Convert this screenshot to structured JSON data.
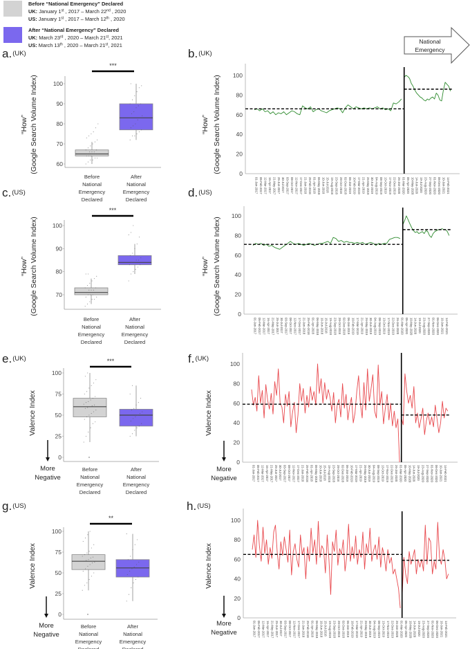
{
  "legend": {
    "before": {
      "title": "Before “National Emergency” Declared",
      "uk_label": "UK:",
      "uk_text": [
        [
          "January 1",
          ""
        ],
        [
          "st",
          "sup"
        ],
        [
          " , 2017 – March 22",
          ""
        ],
        [
          "nd",
          "sup"
        ],
        [
          " , 2020",
          ""
        ]
      ],
      "us_label": "US:",
      "us_text": [
        [
          "January 1",
          ""
        ],
        [
          "st",
          "sup"
        ],
        [
          " , 2017 – March 12",
          ""
        ],
        [
          "th",
          "sup"
        ],
        [
          " , 2020",
          ""
        ]
      ],
      "color": "#d3d3d3"
    },
    "after": {
      "title": "After “National Emergency” Declared",
      "uk_label": "UK:",
      "uk_text": [
        [
          "March 23",
          ""
        ],
        [
          "rd",
          "sup"
        ],
        [
          " , 2020 – March 21",
          ""
        ],
        [
          "st",
          "sup"
        ],
        [
          ", 2021",
          ""
        ]
      ],
      "us_label": "US:",
      "us_text": [
        [
          "March 13",
          ""
        ],
        [
          "th",
          "sup"
        ],
        [
          " , 2020 – March 21",
          ""
        ],
        [
          "st",
          "sup"
        ],
        [
          ", 2021",
          ""
        ]
      ],
      "color": "#7b68ee"
    }
  },
  "emergency_arrow": {
    "line1": "National",
    "line2": "Emergency"
  },
  "more_negative": {
    "line1": "More",
    "line2": "Negative"
  },
  "categories": [
    [
      "Before",
      "National",
      "Emergency",
      "Declared"
    ],
    [
      "After",
      "National",
      "Emergency",
      "Declared"
    ]
  ],
  "date_ticks": [
    "01-Jan-2017",
    "05-Feb-2017",
    "12-Mar-2017",
    "16-Apr-2017",
    "21-May-2017",
    "25-Jun-2017",
    "30-Jul-2017",
    "03-Sep-2017",
    "08-Oct-2017",
    "12-Nov-2017",
    "17-Dec-2017",
    "21-Jan-2018",
    "25-Feb-2018",
    "01-Apr-2018",
    "06-May-2018",
    "10-Jun-2018",
    "15-Jul-2018",
    "19-Aug-2018",
    "23-Sep-2018",
    "28-Oct-2018",
    "02-Dec-2018",
    "06-Jan-2019",
    "10-Feb-2019",
    "17-Mar-2019",
    "21-Apr-2019",
    "26-May-2019",
    "30-Jun-2019",
    "04-Aug-2019",
    "08-Sep-2019",
    "13-Oct-2019",
    "17-Nov-2019",
    "22-Dec-2019",
    "26-Jan-2020",
    "01-Mar-2020",
    "05-Apr-2020",
    "10-May-2020",
    "14-Jun-2020",
    "19-Jul-2020",
    "23-Aug-2020",
    "27-Sep-2020",
    "01-Nov-2020",
    "06-Dec-2020",
    "10-Jan-2021",
    "14-Feb-2021"
  ],
  "chart_data": [
    {
      "id": "a",
      "type": "box",
      "label": "a.",
      "region": "(UK)",
      "ylabel": [
        "“How”",
        "(Google Search Volume Index)"
      ],
      "yticks": [
        60,
        70,
        80,
        90,
        100
      ],
      "ylim": [
        59,
        101
      ],
      "significance": "***",
      "groups": [
        {
          "name": "Before National Emergency Declared",
          "whisker_low": 60,
          "q1": 64,
          "median": 65,
          "q3": 67,
          "whisker_high": 71,
          "points": [
            60,
            61,
            62,
            62,
            63,
            63,
            64,
            64,
            64,
            65,
            65,
            65,
            65,
            66,
            66,
            66,
            67,
            67,
            68,
            69,
            70,
            71,
            72,
            73,
            74,
            75,
            76,
            78,
            80
          ]
        },
        {
          "name": "After National Emergency Declared",
          "whisker_low": 72,
          "q1": 77,
          "median": 83,
          "q3": 90,
          "whisker_high": 100,
          "points": [
            72,
            74,
            74,
            75,
            76,
            77,
            78,
            79,
            80,
            82,
            83,
            84,
            85,
            86,
            88,
            89,
            90,
            90,
            92,
            94,
            96,
            98,
            99,
            100
          ]
        }
      ]
    },
    {
      "id": "c",
      "type": "box",
      "label": "c.",
      "region": "(US)",
      "ylabel": [
        "“How”",
        "(Google Search Volume Index)"
      ],
      "yticks": [
        70,
        80,
        90,
        100
      ],
      "ylim": [
        63,
        102
      ],
      "significance": "***",
      "groups": [
        {
          "name": "Before National Emergency Declared",
          "whisker_low": 66,
          "q1": 70,
          "median": 71,
          "q3": 73,
          "whisker_high": 77,
          "points": [
            65,
            66,
            67,
            68,
            68,
            69,
            69,
            70,
            70,
            70,
            71,
            71,
            71,
            72,
            72,
            72,
            73,
            73,
            74,
            75,
            76,
            77,
            78,
            79,
            79
          ]
        },
        {
          "name": "After National Emergency Declared",
          "whisker_low": 79,
          "q1": 83,
          "median": 84,
          "q3": 87,
          "whisker_high": 92,
          "points": [
            76,
            79,
            80,
            81,
            82,
            83,
            83,
            84,
            84,
            85,
            85,
            86,
            87,
            88,
            90,
            92,
            95,
            96,
            97,
            100
          ]
        }
      ]
    },
    {
      "id": "e",
      "type": "box",
      "label": "e.",
      "region": "(UK)",
      "ylabel": [
        "Valence Index"
      ],
      "yticks": [
        0,
        25,
        50,
        75,
        100
      ],
      "ylim": [
        -3,
        103
      ],
      "significance": "***",
      "groups": [
        {
          "name": "Before National Emergency Declared",
          "whisker_low": 18,
          "q1": 48,
          "median": 60,
          "q3": 70,
          "whisker_high": 100,
          "outliers": [
            0
          ],
          "points": [
            18,
            25,
            30,
            35,
            40,
            42,
            45,
            48,
            50,
            52,
            54,
            56,
            58,
            59,
            60,
            61,
            62,
            63,
            65,
            66,
            68,
            70,
            72,
            75,
            78,
            82,
            85,
            88,
            92,
            96,
            100
          ]
        },
        {
          "name": "After National Emergency Declared",
          "whisker_low": 25,
          "q1": 37,
          "median": 50,
          "q3": 57,
          "whisker_high": 85,
          "points": [
            25,
            28,
            32,
            35,
            37,
            40,
            43,
            46,
            48,
            50,
            52,
            54,
            56,
            58,
            62,
            65,
            70,
            75,
            85
          ]
        }
      ]
    },
    {
      "id": "g",
      "type": "box",
      "label": "g.",
      "region": "(US)",
      "ylabel": [
        "Valence Index"
      ],
      "yticks": [
        0,
        25,
        50,
        75,
        100
      ],
      "ylim": [
        -3,
        103
      ],
      "significance": "**",
      "groups": [
        {
          "name": "Before National Emergency Declared",
          "whisker_low": 29,
          "q1": 54,
          "median": 64,
          "q3": 72,
          "whisker_high": 100,
          "outliers": [
            0
          ],
          "points": [
            29,
            35,
            38,
            42,
            46,
            50,
            52,
            55,
            58,
            60,
            62,
            63,
            64,
            65,
            66,
            68,
            69,
            70,
            72,
            74,
            76,
            80,
            84,
            88,
            92,
            96,
            100
          ]
        },
        {
          "name": "After National Emergency Declared",
          "whisker_low": 16,
          "q1": 45,
          "median": 56,
          "q3": 66,
          "whisker_high": 97,
          "points": [
            16,
            24,
            32,
            38,
            42,
            45,
            48,
            52,
            55,
            57,
            60,
            63,
            66,
            70,
            78,
            84,
            90,
            97
          ]
        }
      ]
    },
    {
      "id": "b",
      "type": "line",
      "label": "b.",
      "region": "(UK)",
      "ylabel": [
        "“How”",
        "(Google Search Volume Index)"
      ],
      "yticks": [
        0,
        20,
        40,
        60,
        80,
        100
      ],
      "ylim": [
        0,
        100
      ],
      "emergency_week": 168,
      "pre_mean": 66,
      "post_mean": 86,
      "color": "#2e8b2e",
      "pre": {
        "start_week": 0,
        "step_weeks": 3,
        "values": [
          65,
          66,
          64,
          66,
          63,
          64,
          61,
          63,
          60,
          62,
          61,
          63,
          60,
          62,
          64,
          63,
          61,
          60,
          69,
          67,
          66,
          68,
          63,
          65,
          66,
          64,
          63,
          62,
          64,
          65,
          66,
          67,
          66,
          62,
          67,
          70,
          68,
          66,
          68,
          67,
          66,
          67,
          66,
          67,
          66,
          67,
          68,
          66,
          67,
          65,
          66,
          64,
          72,
          71,
          73,
          76
        ]
      },
      "post": {
        "start_week": 168,
        "step_weeks": 2,
        "values": [
          98,
          100,
          99,
          97,
          92,
          89,
          85,
          82,
          80,
          78,
          77,
          75,
          74,
          76,
          75,
          77,
          78,
          76,
          82,
          80,
          75,
          74,
          85,
          93,
          91,
          89,
          84
        ]
      }
    },
    {
      "id": "d",
      "type": "line",
      "label": "d.",
      "region": "(US)",
      "ylabel": [
        "“How”",
        "(Google Search Volume Index)"
      ],
      "yticks": [
        0,
        20,
        40,
        60,
        80,
        100
      ],
      "ylim": [
        0,
        100
      ],
      "emergency_week": 168,
      "pre_mean": 71,
      "post_mean": 86,
      "color": "#2e8b2e",
      "pre": {
        "start_week": 0,
        "step_weeks": 3,
        "values": [
          70,
          72,
          71,
          72,
          70,
          71,
          69,
          70,
          68,
          67,
          66,
          68,
          70,
          72,
          74,
          72,
          71,
          72,
          71,
          70,
          71,
          72,
          71,
          70,
          71,
          72,
          72,
          73,
          74,
          72,
          78,
          77,
          74,
          75,
          73,
          74,
          73,
          73,
          72,
          73,
          72,
          73,
          71,
          72,
          73,
          72,
          70,
          72,
          71,
          72,
          72,
          76,
          77,
          78,
          78,
          77
        ]
      },
      "post": {
        "start_week": 168,
        "step_weeks": 2,
        "values": [
          91,
          95,
          100,
          96,
          92,
          88,
          85,
          83,
          84,
          82,
          83,
          84,
          82,
          85,
          84,
          80,
          78,
          82,
          84,
          85,
          86,
          86,
          87,
          86,
          86,
          84,
          80
        ]
      }
    },
    {
      "id": "f",
      "type": "line",
      "label": "f.",
      "region": "(UK)",
      "ylabel": [
        "Valence Index"
      ],
      "yticks": [
        0,
        20,
        40,
        60,
        80,
        100
      ],
      "ylim": [
        0,
        100
      ],
      "emergency_week": 168,
      "pre_mean": 59,
      "post_mean": 48,
      "color": "#e8474c",
      "pre": {
        "start_week": 0,
        "step_weeks": 2,
        "values": [
          74,
          58,
          66,
          52,
          88,
          60,
          73,
          45,
          79,
          63,
          54,
          70,
          49,
          82,
          68,
          95,
          60,
          56,
          40,
          69,
          57,
          72,
          36,
          51,
          61,
          30,
          48,
          80,
          62,
          75,
          50,
          68,
          56,
          77,
          63,
          72,
          58,
          100,
          70,
          85,
          60,
          81,
          64,
          74,
          66,
          52,
          71,
          40,
          58,
          64,
          46,
          80,
          55,
          69,
          43,
          57,
          66,
          40,
          50,
          72,
          88,
          60,
          45,
          81,
          53,
          95,
          62,
          75,
          89,
          52,
          45,
          99,
          58,
          72,
          39,
          55,
          69,
          43,
          60,
          37,
          52,
          35,
          44,
          0
        ]
      },
      "post": {
        "start_week": 168,
        "step_weeks": 2,
        "values": [
          45,
          38,
          90,
          72,
          60,
          68,
          55,
          77,
          40,
          50,
          35,
          44,
          55,
          28,
          42,
          50,
          38,
          46,
          36,
          58,
          44,
          30,
          40,
          62,
          45,
          55,
          52
        ]
      }
    },
    {
      "id": "h",
      "type": "line",
      "label": "h.",
      "region": "(US)",
      "ylabel": [
        "Valence Index"
      ],
      "yticks": [
        0,
        20,
        40,
        60,
        80,
        100
      ],
      "ylim": [
        0,
        100
      ],
      "emergency_week": 168,
      "pre_mean": 65,
      "post_mean": 59,
      "color": "#e8474c",
      "pre": {
        "start_week": 0,
        "step_weeks": 2,
        "values": [
          70,
          85,
          62,
          100,
          74,
          58,
          93,
          66,
          80,
          55,
          72,
          61,
          88,
          95,
          67,
          50,
          78,
          64,
          83,
          70,
          57,
          90,
          44,
          68,
          76,
          60,
          52,
          85,
          65,
          72,
          40,
          73,
          58,
          92,
          66,
          80,
          55,
          99,
          62,
          74,
          70,
          46,
          85,
          60,
          24,
          78,
          68,
          90,
          54,
          71,
          65,
          80,
          48,
          63,
          96,
          58,
          73,
          61,
          84,
          55,
          70,
          62,
          88,
          50,
          76,
          66,
          92,
          58,
          69,
          75,
          60,
          83,
          52,
          72,
          64,
          48,
          70,
          56,
          62,
          45,
          50,
          40,
          30,
          10
        ]
      },
      "post": {
        "start_week": 168,
        "step_weeks": 2,
        "values": [
          20,
          62,
          45,
          35,
          68,
          55,
          62,
          70,
          45,
          60,
          52,
          60,
          48,
          95,
          55,
          82,
          78,
          45,
          58,
          50,
          98,
          62,
          55,
          70,
          60,
          40,
          45
        ]
      }
    }
  ]
}
